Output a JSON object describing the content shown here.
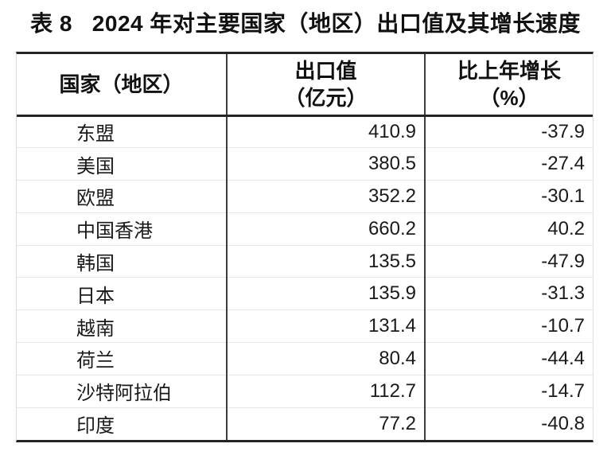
{
  "title": {
    "text": "表 8   2024 年对主要国家（地区）出口值及其增长速度"
  },
  "table": {
    "columns": [
      {
        "id": "region",
        "label_line1": "国家（地区）",
        "label_line2": ""
      },
      {
        "id": "export_value",
        "label_line1": "出口值",
        "label_line2": "（亿元）"
      },
      {
        "id": "growth",
        "label_line1": "比上年增长",
        "label_line2": "（%）"
      }
    ],
    "rows": [
      {
        "region": "东盟",
        "export_value": "410.9",
        "growth": "-37.9"
      },
      {
        "region": "美国",
        "export_value": "380.5",
        "growth": "-27.4"
      },
      {
        "region": "欧盟",
        "export_value": "352.2",
        "growth": "-30.1"
      },
      {
        "region": "中国香港",
        "export_value": "660.2",
        "growth": "40.2"
      },
      {
        "region": "韩国",
        "export_value": "135.5",
        "growth": "-47.9"
      },
      {
        "region": "日本",
        "export_value": "135.9",
        "growth": "-31.3"
      },
      {
        "region": "越南",
        "export_value": "131.4",
        "growth": "-10.7"
      },
      {
        "region": "荷兰",
        "export_value": "80.4",
        "growth": "-44.4"
      },
      {
        "region": "沙特阿拉伯",
        "export_value": "112.7",
        "growth": "-14.7"
      },
      {
        "region": "印度",
        "export_value": "77.2",
        "growth": "-40.8"
      }
    ],
    "colors": {
      "background": "#ffffff",
      "text": "#1a1a1a",
      "border_dark": "#242424",
      "column_divider": "#3d3d3d",
      "row_separator": "#e8e8e8",
      "side_border": "#dcdcdc"
    }
  }
}
